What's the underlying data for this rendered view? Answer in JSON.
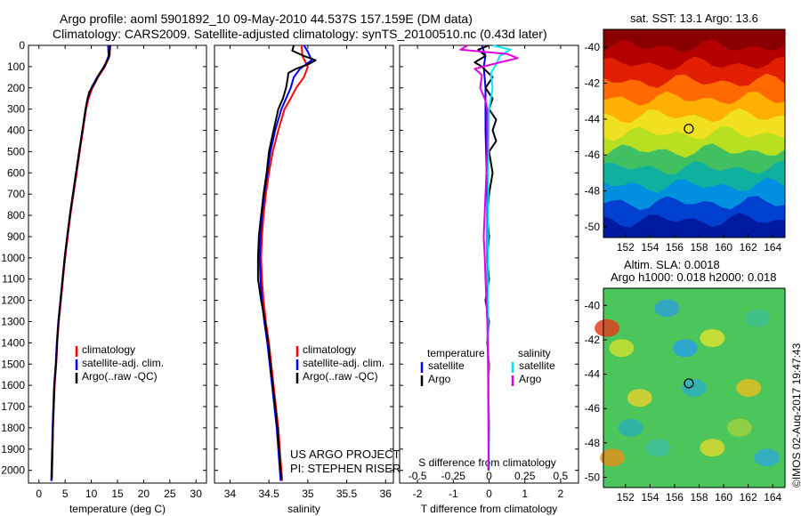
{
  "header": {
    "line1": "Argo profile: aoml 5901892_10 09-May-2010 44.537S 157.159E (DM data)",
    "line2": "Climatology: CARS2009. Satellite-adjusted climatology: synTS_20100510.nc (0.43d later)"
  },
  "credits": {
    "project": "US ARGO PROJECT",
    "pi": "PI: STEPHEN RISER",
    "stamp": "©IMOS 02-Aug-2017 19:47:43"
  },
  "colors": {
    "climatology": "#ff0000",
    "satellite": "#0000ff",
    "argo": "#000000",
    "salinity_satellite": "#00e5ff",
    "salinity_argo": "#e000e0"
  },
  "legend": {
    "climatology": "climatology",
    "satellite": "satellite-adj. clim.",
    "argo": "Argo(..raw -QC)",
    "temperature_head": "temperature",
    "salinity_head": "salinity",
    "satellite_short": "satellite",
    "argo_short": "Argo"
  },
  "maps": {
    "sst_title": "sat. SST: 13.1  Argo: 13.6",
    "sla_title1": "Altim. SLA: 0.0018",
    "sla_title2": "Argo h1000: 0.018  h2000: 0.018",
    "lon_ticks": [
      "152",
      "154",
      "156",
      "158",
      "160",
      "162",
      "164"
    ],
    "lat_ticks": [
      "-40",
      "-42",
      "-44",
      "-46",
      "-48",
      "-50"
    ],
    "float_position": {
      "lon": 157.159,
      "lat": -44.537
    }
  },
  "chart_data": [
    {
      "type": "line",
      "panel": "temperature",
      "xlabel": "temperature (deg C)",
      "ylabel": "",
      "xlim": [
        -2,
        32
      ],
      "ylim": [
        2060,
        0
      ],
      "x_ticks": [
        "0",
        "5",
        "10",
        "15",
        "20",
        "25",
        "30"
      ],
      "x_tick_values": [
        0,
        5,
        10,
        15,
        20,
        25,
        30
      ],
      "y_ticks": [
        "0",
        "100",
        "200",
        "300",
        "400",
        "500",
        "600",
        "700",
        "800",
        "900",
        "1000",
        "1100",
        "1200",
        "1300",
        "1400",
        "1500",
        "1600",
        "1700",
        "1800",
        "1900",
        "2000"
      ],
      "series": [
        {
          "name": "climatology",
          "color": "#ff0000",
          "points": [
            [
              13.6,
              0
            ],
            [
              13.5,
              50
            ],
            [
              12.6,
              100
            ],
            [
              11.3,
              150
            ],
            [
              10.2,
              200
            ],
            [
              9.5,
              250
            ],
            [
              9.0,
              300
            ],
            [
              8.4,
              400
            ],
            [
              7.8,
              500
            ],
            [
              7.2,
              600
            ],
            [
              6.6,
              700
            ],
            [
              6.0,
              800
            ],
            [
              5.5,
              900
            ],
            [
              5.0,
              1000
            ],
            [
              4.6,
              1100
            ],
            [
              4.2,
              1200
            ],
            [
              3.8,
              1300
            ],
            [
              3.5,
              1400
            ],
            [
              3.3,
              1500
            ],
            [
              3.0,
              1600
            ],
            [
              2.85,
              1700
            ],
            [
              2.7,
              1800
            ],
            [
              2.6,
              1900
            ],
            [
              2.5,
              2000
            ],
            [
              2.45,
              2050
            ]
          ]
        },
        {
          "name": "satellite-adj. clim.",
          "color": "#0000ff",
          "points": [
            [
              13.2,
              0
            ],
            [
              13.3,
              50
            ],
            [
              12.5,
              100
            ],
            [
              11.1,
              150
            ],
            [
              10.0,
              200
            ],
            [
              9.3,
              250
            ],
            [
              8.9,
              300
            ],
            [
              8.3,
              400
            ],
            [
              7.7,
              500
            ],
            [
              7.1,
              600
            ],
            [
              6.5,
              700
            ],
            [
              5.9,
              800
            ],
            [
              5.4,
              900
            ],
            [
              4.9,
              1000
            ],
            [
              4.5,
              1100
            ],
            [
              4.1,
              1200
            ],
            [
              3.7,
              1300
            ],
            [
              3.4,
              1400
            ],
            [
              3.2,
              1500
            ],
            [
              2.9,
              1600
            ],
            [
              2.75,
              1700
            ],
            [
              2.6,
              1800
            ],
            [
              2.5,
              1900
            ],
            [
              2.4,
              2000
            ],
            [
              2.35,
              2050
            ]
          ]
        },
        {
          "name": "Argo(..raw -QC)",
          "color": "#000000",
          "points": [
            [
              13.6,
              0
            ],
            [
              13.5,
              30
            ],
            [
              13.3,
              60
            ],
            [
              12.4,
              100
            ],
            [
              11.4,
              140
            ],
            [
              10.6,
              180
            ],
            [
              9.6,
              220
            ],
            [
              9.2,
              260
            ],
            [
              8.8,
              320
            ],
            [
              8.3,
              400
            ],
            [
              7.8,
              480
            ],
            [
              7.2,
              580
            ],
            [
              6.6,
              680
            ],
            [
              6.0,
              780
            ],
            [
              5.5,
              880
            ],
            [
              5.0,
              980
            ],
            [
              4.6,
              1080
            ],
            [
              4.2,
              1180
            ],
            [
              3.8,
              1280
            ],
            [
              3.5,
              1380
            ],
            [
              3.3,
              1480
            ],
            [
              3.0,
              1580
            ],
            [
              2.85,
              1680
            ],
            [
              2.7,
              1780
            ],
            [
              2.6,
              1880
            ],
            [
              2.5,
              1980
            ],
            [
              2.45,
              2040
            ]
          ]
        }
      ]
    },
    {
      "type": "line",
      "panel": "salinity",
      "xlabel": "salinity",
      "ylabel": "",
      "xlim": [
        33.8,
        36.1
      ],
      "ylim": [
        2060,
        0
      ],
      "x_ticks": [
        "34",
        "34.5",
        "35",
        "35.5",
        "36"
      ],
      "x_tick_values": [
        34,
        34.5,
        35,
        35.5,
        36
      ],
      "series": [
        {
          "name": "climatology",
          "color": "#ff0000",
          "points": [
            [
              34.92,
              0
            ],
            [
              34.93,
              50
            ],
            [
              35.0,
              100
            ],
            [
              34.95,
              150
            ],
            [
              34.85,
              200
            ],
            [
              34.78,
              250
            ],
            [
              34.7,
              300
            ],
            [
              34.62,
              400
            ],
            [
              34.55,
              500
            ],
            [
              34.5,
              600
            ],
            [
              34.46,
              700
            ],
            [
              34.43,
              800
            ],
            [
              34.41,
              900
            ],
            [
              34.4,
              1000
            ],
            [
              34.41,
              1100
            ],
            [
              34.43,
              1200
            ],
            [
              34.46,
              1300
            ],
            [
              34.5,
              1400
            ],
            [
              34.53,
              1500
            ],
            [
              34.56,
              1600
            ],
            [
              34.59,
              1700
            ],
            [
              34.62,
              1800
            ],
            [
              34.64,
              1900
            ],
            [
              34.66,
              2000
            ],
            [
              34.67,
              2050
            ]
          ]
        },
        {
          "name": "satellite-adj. clim.",
          "color": "#0000ff",
          "points": [
            [
              34.95,
              0
            ],
            [
              35.0,
              30
            ],
            [
              35.05,
              70
            ],
            [
              34.9,
              110
            ],
            [
              34.82,
              150
            ],
            [
              34.78,
              200
            ],
            [
              34.72,
              250
            ],
            [
              34.66,
              300
            ],
            [
              34.58,
              400
            ],
            [
              34.52,
              500
            ],
            [
              34.48,
              600
            ],
            [
              34.44,
              700
            ],
            [
              34.41,
              800
            ],
            [
              34.39,
              900
            ],
            [
              34.38,
              1000
            ],
            [
              34.39,
              1100
            ],
            [
              34.41,
              1200
            ],
            [
              34.44,
              1300
            ],
            [
              34.48,
              1400
            ],
            [
              34.51,
              1500
            ],
            [
              34.54,
              1600
            ],
            [
              34.57,
              1700
            ],
            [
              34.6,
              1800
            ],
            [
              34.62,
              1900
            ],
            [
              34.64,
              2000
            ],
            [
              34.65,
              2050
            ]
          ]
        },
        {
          "name": "Argo(..raw -QC)",
          "color": "#000000",
          "points": [
            [
              34.82,
              0
            ],
            [
              34.8,
              25
            ],
            [
              34.95,
              50
            ],
            [
              35.1,
              70
            ],
            [
              35.0,
              90
            ],
            [
              34.85,
              110
            ],
            [
              34.75,
              130
            ],
            [
              34.74,
              160
            ],
            [
              34.72,
              200
            ],
            [
              34.68,
              250
            ],
            [
              34.62,
              300
            ],
            [
              34.56,
              400
            ],
            [
              34.5,
              500
            ],
            [
              34.47,
              600
            ],
            [
              34.43,
              700
            ],
            [
              34.4,
              800
            ],
            [
              34.37,
              900
            ],
            [
              34.36,
              1000
            ],
            [
              34.36,
              1100
            ],
            [
              34.4,
              1200
            ],
            [
              34.45,
              1300
            ],
            [
              34.49,
              1400
            ],
            [
              34.52,
              1500
            ],
            [
              34.55,
              1600
            ],
            [
              34.58,
              1700
            ],
            [
              34.61,
              1800
            ],
            [
              34.63,
              1900
            ],
            [
              34.65,
              2000
            ],
            [
              34.66,
              2040
            ]
          ]
        }
      ]
    },
    {
      "type": "line",
      "panel": "difference",
      "xlabel": "T difference from climatology",
      "xlabel2": "S difference from climatology",
      "xlim": [
        -2.5,
        2.5
      ],
      "ylim": [
        2060,
        0
      ],
      "x_ticks": [
        "-2",
        "-1",
        "0",
        "1",
        "2"
      ],
      "x_tick_values": [
        -2,
        -1,
        0,
        1,
        2
      ],
      "s_ticks": [
        "-0.5",
        "-0.25",
        "0",
        "0.25",
        "0.5"
      ],
      "s_tick_values": [
        -0.5,
        -0.25,
        0,
        0.25,
        0.5
      ],
      "series": [
        {
          "name": "temperature satellite",
          "color": "#0000ff",
          "points": [
            [
              -0.2,
              0
            ],
            [
              -0.1,
              50
            ],
            [
              -0.15,
              100
            ],
            [
              -0.1,
              200
            ],
            [
              -0.1,
              400
            ],
            [
              -0.05,
              700
            ],
            [
              -0.05,
              1000
            ],
            [
              -0.03,
              1300
            ],
            [
              -0.02,
              1600
            ],
            [
              -0.01,
              2000
            ]
          ]
        },
        {
          "name": "temperature Argo",
          "color": "#000000",
          "points": [
            [
              0.0,
              0
            ],
            [
              -0.3,
              20
            ],
            [
              -0.1,
              50
            ],
            [
              -0.4,
              80
            ],
            [
              -0.2,
              100
            ],
            [
              0.1,
              150
            ],
            [
              -0.1,
              200
            ],
            [
              0.1,
              250
            ],
            [
              0.0,
              300
            ],
            [
              0.2,
              350
            ],
            [
              0.1,
              400
            ],
            [
              0.2,
              450
            ],
            [
              0.0,
              500
            ],
            [
              0.1,
              600
            ],
            [
              0.0,
              700
            ],
            [
              -0.05,
              800
            ],
            [
              0.0,
              900
            ],
            [
              -0.05,
              1000
            ],
            [
              0.0,
              1100
            ],
            [
              -0.1,
              1200
            ],
            [
              0.0,
              1300
            ],
            [
              -0.05,
              1400
            ],
            [
              0.0,
              1500
            ],
            [
              -0.02,
              1600
            ],
            [
              0.0,
              1800
            ],
            [
              -0.02,
              2000
            ]
          ]
        },
        {
          "name": "salinity satellite",
          "color": "#00e5ff",
          "points": [
            [
              0.1,
              0
            ],
            [
              0.6,
              20
            ],
            [
              0.3,
              50
            ],
            [
              0.2,
              90
            ],
            [
              0.05,
              130
            ],
            [
              0.1,
              200
            ],
            [
              0.0,
              300
            ],
            [
              -0.02,
              500
            ],
            [
              -0.03,
              800
            ],
            [
              -0.03,
              1100
            ],
            [
              -0.02,
              1400
            ],
            [
              -0.01,
              1700
            ],
            [
              0.0,
              2000
            ]
          ]
        },
        {
          "name": "salinity Argo",
          "color": "#e000e0",
          "points": [
            [
              -0.6,
              0
            ],
            [
              -0.8,
              20
            ],
            [
              0.5,
              40
            ],
            [
              0.8,
              60
            ],
            [
              0.3,
              80
            ],
            [
              -0.4,
              110
            ],
            [
              -0.2,
              140
            ],
            [
              -0.25,
              200
            ],
            [
              -0.1,
              260
            ],
            [
              -0.05,
              300
            ],
            [
              -0.05,
              500
            ],
            [
              -0.1,
              700
            ],
            [
              -0.15,
              900
            ],
            [
              -0.12,
              1000
            ],
            [
              -0.1,
              1100
            ],
            [
              -0.05,
              1300
            ],
            [
              -0.03,
              1500
            ],
            [
              -0.02,
              1700
            ],
            [
              -0.01,
              2000
            ]
          ]
        }
      ]
    }
  ]
}
